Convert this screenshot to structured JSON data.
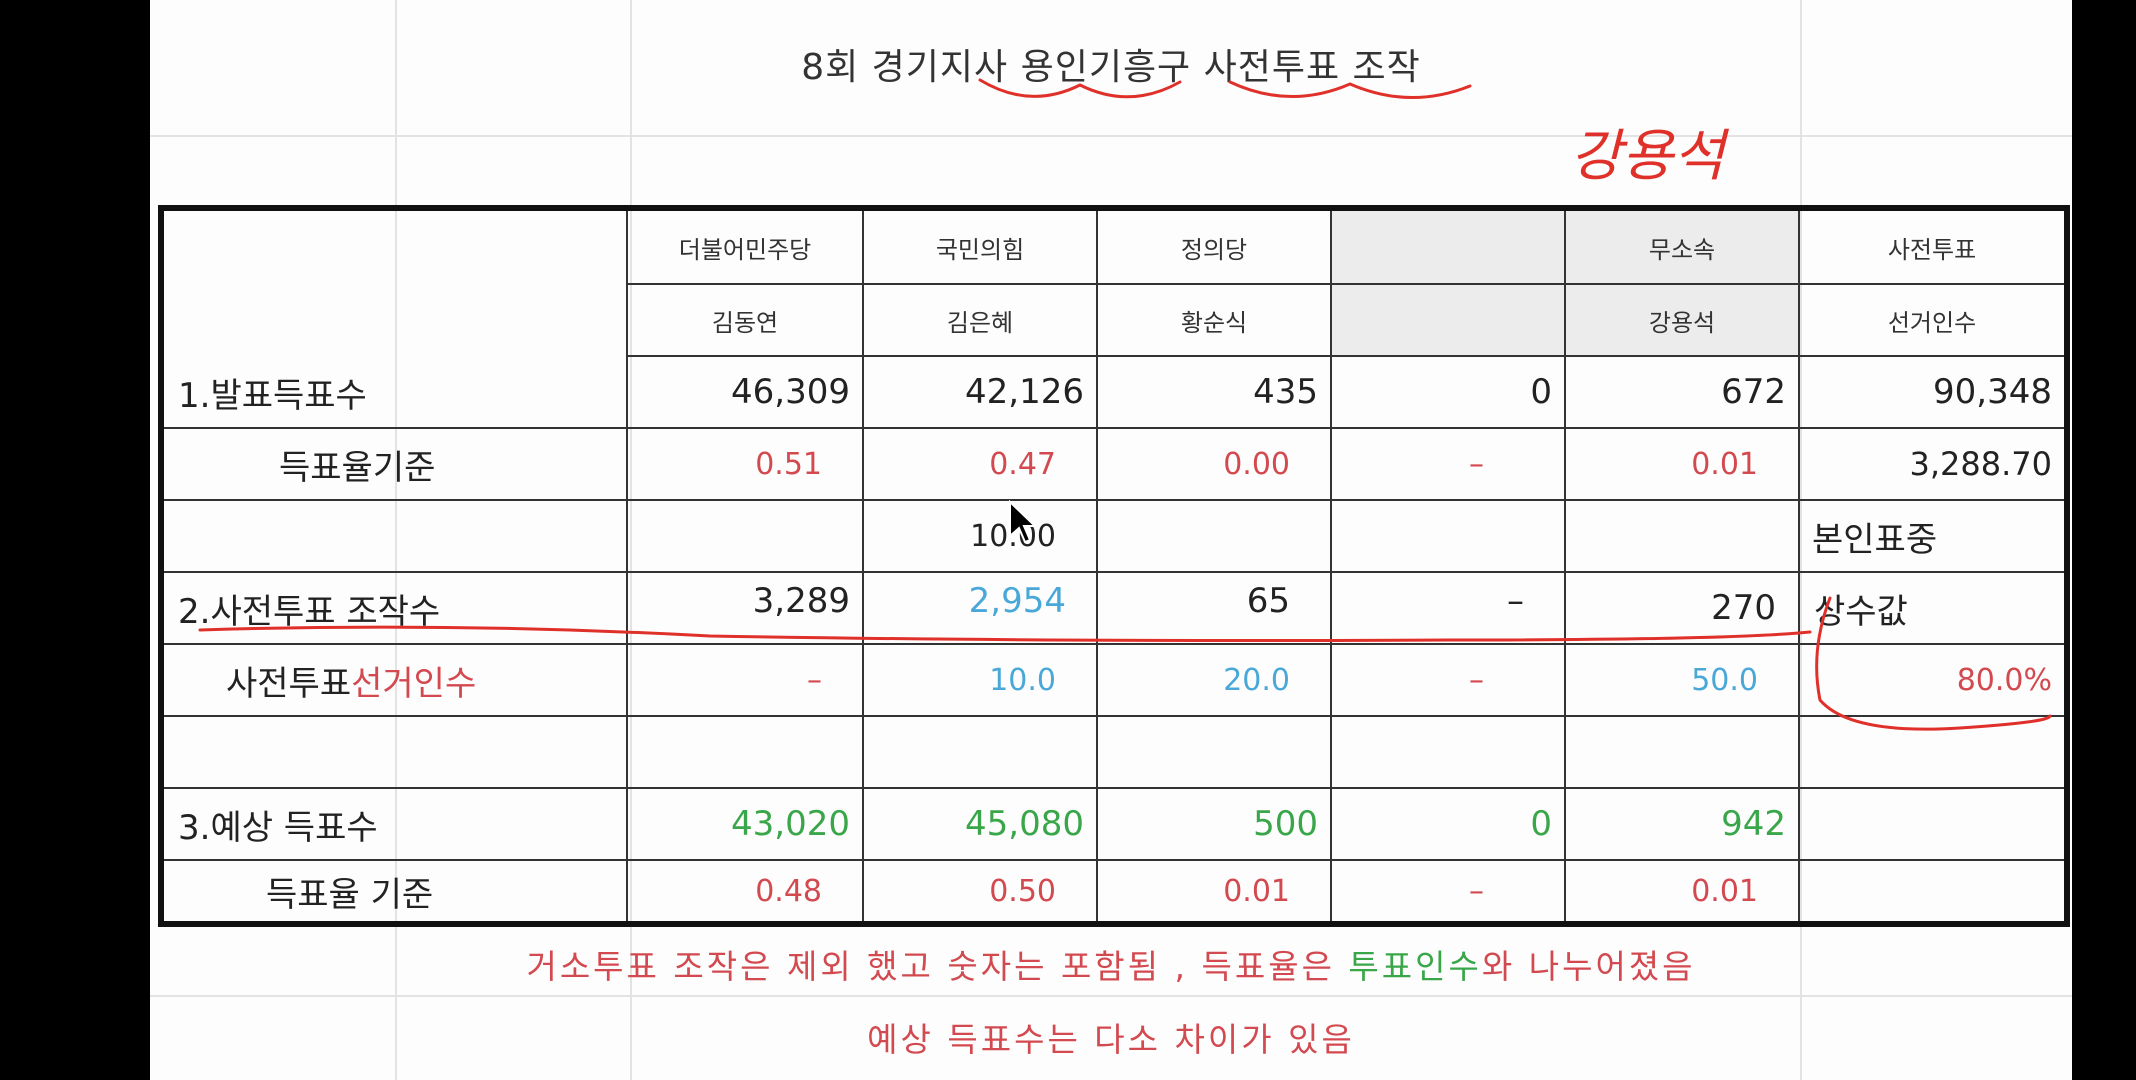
{
  "title": "8회 경기지사 용인기흥구 사전투표 조작",
  "handwritten_name": "강용석",
  "headers": {
    "parties": [
      "더불어민주당",
      "국민의힘",
      "정의당",
      "",
      "무소속",
      "사전투표"
    ],
    "candidates": [
      "김동연",
      "김은혜",
      "황순식",
      "",
      "강용석",
      "선거인수"
    ]
  },
  "rows": [
    {
      "label": "1.발표득표수",
      "values": [
        "46,309",
        "42,126",
        "435",
        "0",
        "672",
        "90,348"
      ]
    },
    {
      "label": "득표율기준",
      "values": [
        "0.51",
        "0.47",
        "0.00",
        "–",
        "0.01",
        "3,288.70"
      ]
    },
    {
      "label": "",
      "values": [
        "",
        "10.00",
        "",
        "",
        "",
        "본인표중"
      ]
    },
    {
      "label": "2.사전투표 조작수",
      "values": [
        "3,289",
        "2,954",
        "65",
        "–",
        "270",
        "상수값"
      ]
    },
    {
      "label_a": "사전투표",
      "label_b": "선거인수",
      "values": [
        "–",
        "10.0",
        "20.0",
        "–",
        "50.0",
        "80.0%"
      ]
    },
    {
      "label": "",
      "values": [
        "",
        "",
        "",
        "",
        "",
        ""
      ]
    },
    {
      "label": "3.예상 득표수",
      "values": [
        "43,020",
        "45,080",
        "500",
        "0",
        "942",
        ""
      ]
    },
    {
      "label": "득표율 기준",
      "values": [
        "0.48",
        "0.50",
        "0.01",
        "–",
        "0.01",
        ""
      ]
    }
  ],
  "notes": {
    "line1_a": "거소투표 조작은  제외 했고 숫자는 포함됨 , 득표율은 ",
    "line1_b": "투표인수",
    "line1_c": "와 나누어졌음",
    "line2": "예상 득표수는 다소 차이가 있음"
  },
  "colors": {
    "red": "#d24a50",
    "blue": "#4aa8d8",
    "green": "#3aa64a",
    "ink": "#e0302a"
  }
}
